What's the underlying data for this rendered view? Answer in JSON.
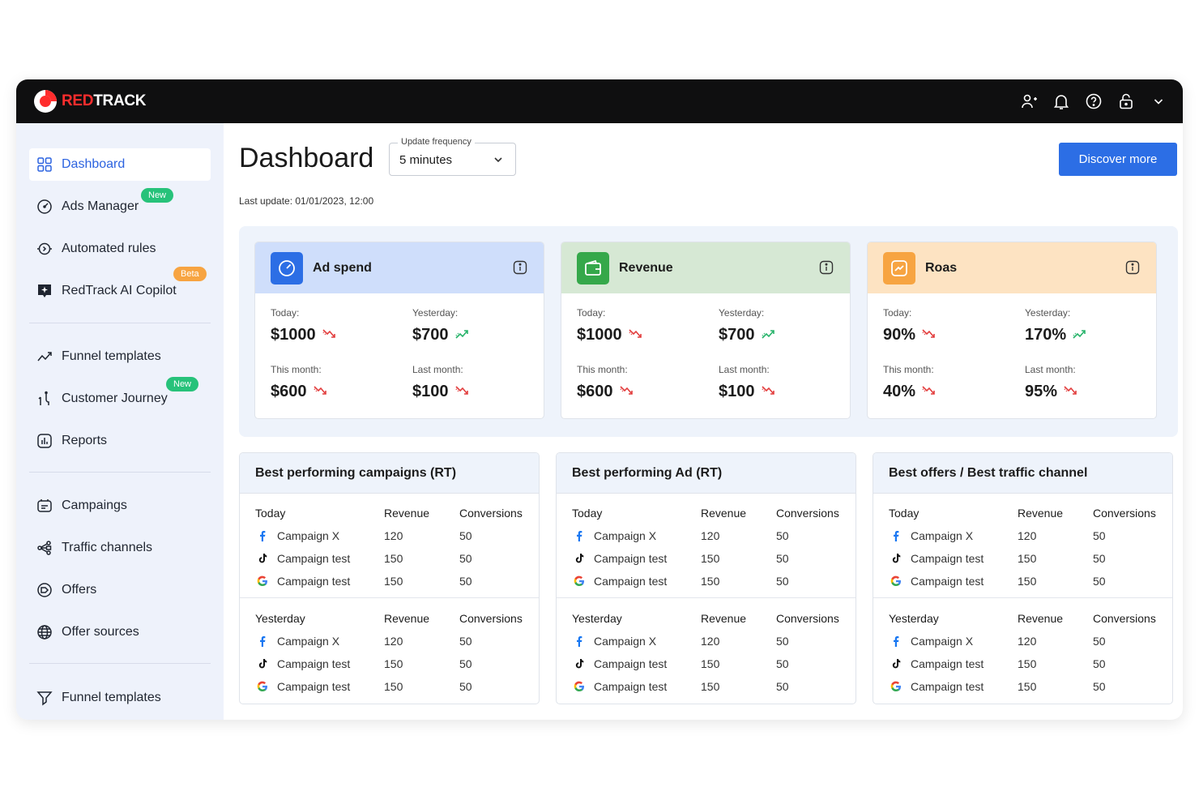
{
  "brand": {
    "red": "RED",
    "white": "TRACK"
  },
  "colors": {
    "accent": "#2c6ee5",
    "topbar": "#0f0f10",
    "down": "#e23d3d",
    "up": "#27b36a",
    "green_badge": "#27c27a",
    "beta_badge": "#f7a441"
  },
  "topbar": {
    "icons": [
      "user-plus-icon",
      "bell-icon",
      "help-icon",
      "lock-icon",
      "chevron-down-icon"
    ]
  },
  "sidebar": {
    "items": [
      {
        "label": "Dashboard",
        "icon": "grid-icon",
        "active": true
      },
      {
        "label": "Ads Manager",
        "icon": "gauge-icon",
        "badge": "New"
      },
      {
        "label": "Automated rules",
        "icon": "rules-icon"
      },
      {
        "label": "RedTrack AI Copilot",
        "icon": "ai-icon",
        "badge": "Beta"
      },
      {
        "label": "Funnel templates",
        "icon": "chart-line-icon"
      },
      {
        "label": "Customer Journey",
        "icon": "journey-icon",
        "badge": "New"
      },
      {
        "label": "Reports",
        "icon": "report-icon"
      },
      {
        "label": "Campaings",
        "icon": "campaign-icon"
      },
      {
        "label": "Traffic channels",
        "icon": "channels-icon"
      },
      {
        "label": "Offers",
        "icon": "offer-icon"
      },
      {
        "label": "Offer sources",
        "icon": "globe-icon"
      },
      {
        "label": "Funnel templates",
        "icon": "funnel-icon"
      }
    ]
  },
  "header": {
    "title": "Dashboard",
    "frequency_label": "Update frequency",
    "frequency_value": "5 minutes",
    "discover_label": "Discover more",
    "last_update": "Last update: 01/01/2023, 12:00"
  },
  "kpis": [
    {
      "title": "Ad spend",
      "color": "#cfdefb",
      "icon_bg": "#2c6ee5",
      "cells": [
        {
          "label": "Today:",
          "value": "$1000",
          "trend": "down"
        },
        {
          "label": "Yesterday:",
          "value": "$700",
          "trend": "up"
        },
        {
          "label": "This month:",
          "value": "$600",
          "trend": "down"
        },
        {
          "label": "Last month:",
          "value": "$100",
          "trend": "down"
        }
      ]
    },
    {
      "title": "Revenue",
      "color": "#d6e8d4",
      "icon_bg": "#35a84a",
      "cells": [
        {
          "label": "Today:",
          "value": "$1000",
          "trend": "down"
        },
        {
          "label": "Yesterday:",
          "value": "$700",
          "trend": "up"
        },
        {
          "label": "This month:",
          "value": "$600",
          "trend": "down"
        },
        {
          "label": "Last month:",
          "value": "$100",
          "trend": "down"
        }
      ]
    },
    {
      "title": "Roas",
      "color": "#fde3c2",
      "icon_bg": "#f7a441",
      "cells": [
        {
          "label": "Today:",
          "value": "90%",
          "trend": "down"
        },
        {
          "label": "Yesterday:",
          "value": "170%",
          "trend": "up"
        },
        {
          "label": "This month:",
          "value": "40%",
          "trend": "down"
        },
        {
          "label": "Last month:",
          "value": "95%",
          "trend": "down"
        }
      ]
    }
  ],
  "tables": [
    {
      "title": "Best performing campaigns (RT)"
    },
    {
      "title": "Best performing Ad (RT)"
    },
    {
      "title": "Best offers / Best traffic channel"
    }
  ],
  "table_template": {
    "columns": [
      "Revenue",
      "Conversions"
    ],
    "blocks": [
      {
        "period": "Today",
        "rows": [
          {
            "source": "facebook",
            "name": "Campaign X",
            "revenue": "120",
            "conversions": "50"
          },
          {
            "source": "tiktok",
            "name": "Campaign test",
            "revenue": "150",
            "conversions": "50"
          },
          {
            "source": "google",
            "name": "Campaign test",
            "revenue": "150",
            "conversions": "50"
          }
        ]
      },
      {
        "period": "Yesterday",
        "rows": [
          {
            "source": "facebook",
            "name": "Campaign X",
            "revenue": "120",
            "conversions": "50"
          },
          {
            "source": "tiktok",
            "name": "Campaign test",
            "revenue": "150",
            "conversions": "50"
          },
          {
            "source": "google",
            "name": "Campaign test",
            "revenue": "150",
            "conversions": "50"
          }
        ]
      }
    ]
  }
}
